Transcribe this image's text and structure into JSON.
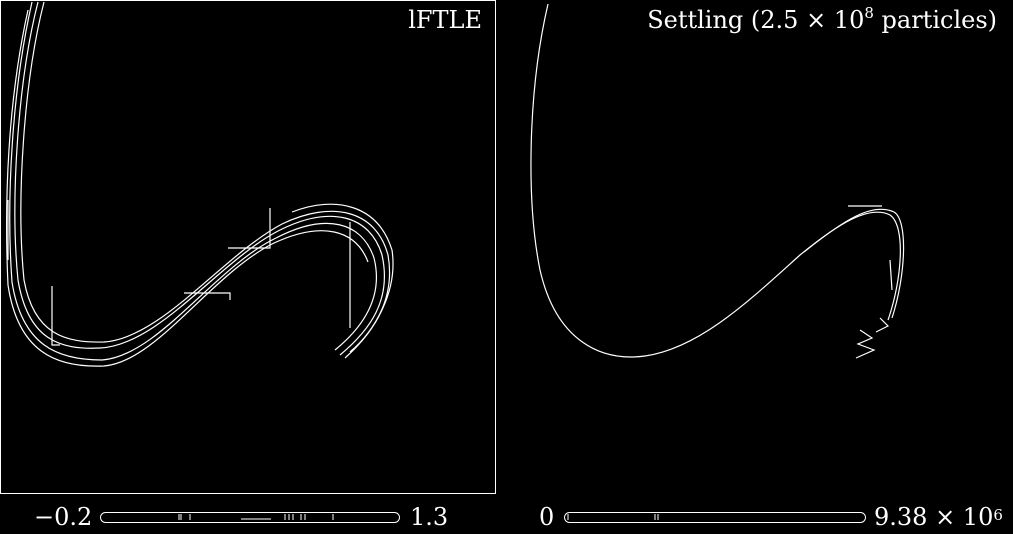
{
  "panels": [
    {
      "title": "lFTLE",
      "colorbar": {
        "min_label": "−0.2",
        "max_label": "1.3"
      }
    },
    {
      "title_main": "Settling (2.5 × 10",
      "title_exp": "8",
      "title_tail": " particles)",
      "colorbar": {
        "min_label": "0",
        "max_label_main": "9.38 × 10",
        "max_label_exp": "6"
      }
    }
  ],
  "colors": {
    "background": "#000000",
    "foreground": "#ffffff"
  }
}
